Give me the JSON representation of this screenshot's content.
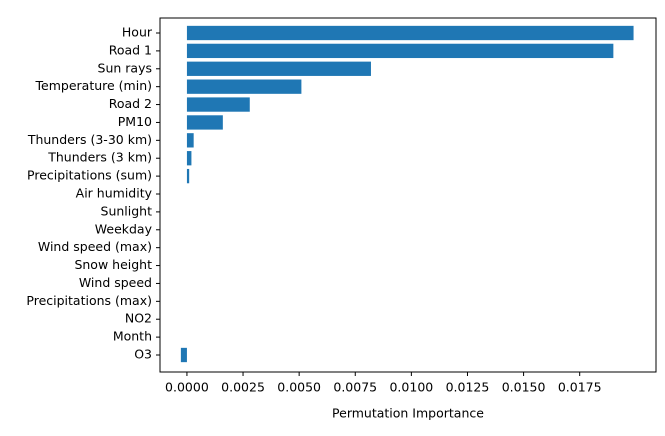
{
  "chart_data": {
    "type": "barh",
    "xlabel": "Permutation Importance",
    "categories": [
      "Hour",
      "Road 1",
      "Sun rays",
      "Temperature (min)",
      "Road 2",
      "PM10",
      "Thunders (3-30 km)",
      "Thunders (3 km)",
      "Precipitations (sum)",
      "Air humidity",
      "Sunlight",
      "Weekday",
      "Wind speed (max)",
      "Snow height",
      "Wind speed",
      "Precipitations (max)",
      "NO2",
      "Month",
      "O3"
    ],
    "values": [
      0.0199,
      0.019,
      0.0082,
      0.0051,
      0.0028,
      0.0016,
      0.0003,
      0.0002,
      0.0001,
      0,
      0,
      0,
      0,
      0,
      0,
      0,
      0,
      0,
      -0.00027
    ],
    "color": "#1f77b4",
    "xlim": [
      -0.0012,
      0.0209
    ],
    "xticks": [
      {
        "value": 0,
        "label": "0.0000"
      },
      {
        "value": 0.0025,
        "label": "0.0025"
      },
      {
        "value": 0.005,
        "label": "0.0050"
      },
      {
        "value": 0.0075,
        "label": "0.0075"
      },
      {
        "value": 0.01,
        "label": "0.0100"
      },
      {
        "value": 0.0125,
        "label": "0.0125"
      },
      {
        "value": 0.015,
        "label": "0.0150"
      },
      {
        "value": 0.0175,
        "label": "0.0175"
      }
    ]
  }
}
